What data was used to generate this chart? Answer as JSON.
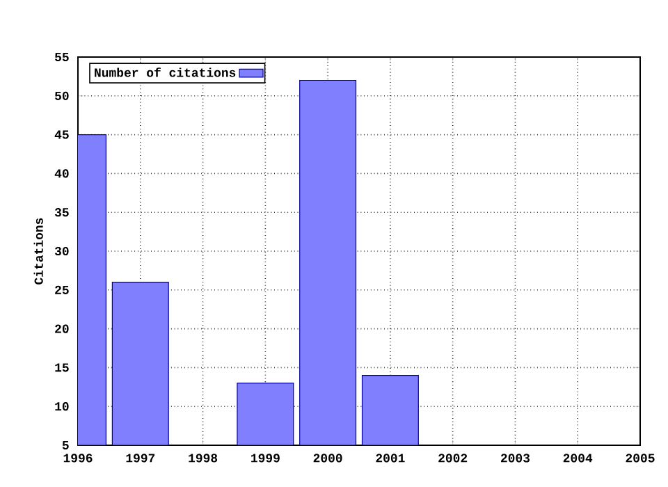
{
  "chart_data": {
    "type": "bar",
    "ylabel": "Citations",
    "x": [
      1996,
      1997,
      1998,
      1999,
      2000,
      2001
    ],
    "series": [
      {
        "name": "Number of citations",
        "color": "#8080ff",
        "values": [
          45,
          26,
          null,
          13,
          52,
          14
        ]
      }
    ],
    "xlim": [
      1996,
      2005
    ],
    "xticks": [
      1996,
      1997,
      1998,
      1999,
      2000,
      2001,
      2002,
      2003,
      2004,
      2005
    ],
    "ylim": [
      5,
      55
    ],
    "yticks": [
      5,
      10,
      15,
      20,
      25,
      30,
      35,
      40,
      45,
      50,
      55
    ],
    "grid": true,
    "legend": "top left"
  }
}
